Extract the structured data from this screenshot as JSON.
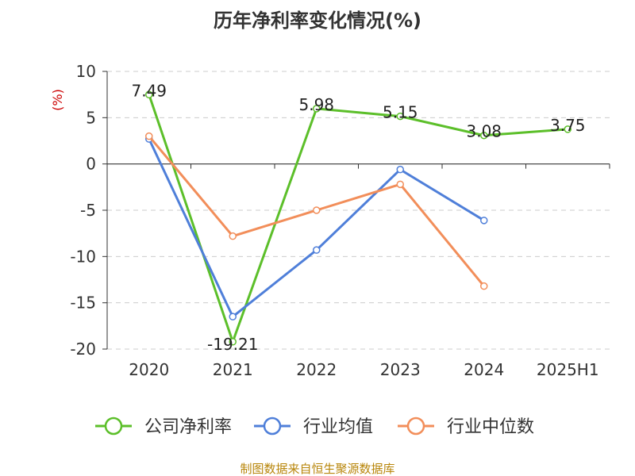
{
  "chart_data": {
    "type": "line",
    "title": "历年净利率变化情况(%)",
    "ylabel": "(%)",
    "categories": [
      "2020",
      "2021",
      "2022",
      "2023",
      "2024",
      "2025H1"
    ],
    "ylim": [
      -20,
      10
    ],
    "yticks": [
      10,
      5,
      0,
      -5,
      -10,
      -15,
      -20
    ],
    "grid": true,
    "legend_position": "bottom",
    "series": [
      {
        "name": "公司净利率",
        "color": "#5cbf2a",
        "values": [
          7.49,
          -19.21,
          5.98,
          5.15,
          3.08,
          3.75
        ],
        "labels": [
          "7.49",
          "-19.21",
          "5.98",
          "5.15",
          "3.08",
          "3.75"
        ]
      },
      {
        "name": "行业均值",
        "color": "#4f7fd9",
        "values": [
          2.7,
          -16.5,
          -9.3,
          -0.6,
          -6.1,
          null
        ]
      },
      {
        "name": "行业中位数",
        "color": "#f28e5a",
        "values": [
          3.0,
          -7.8,
          -5.0,
          -2.2,
          -13.2,
          null
        ]
      }
    ],
    "source": "制图数据来自恒生聚源数据库"
  }
}
